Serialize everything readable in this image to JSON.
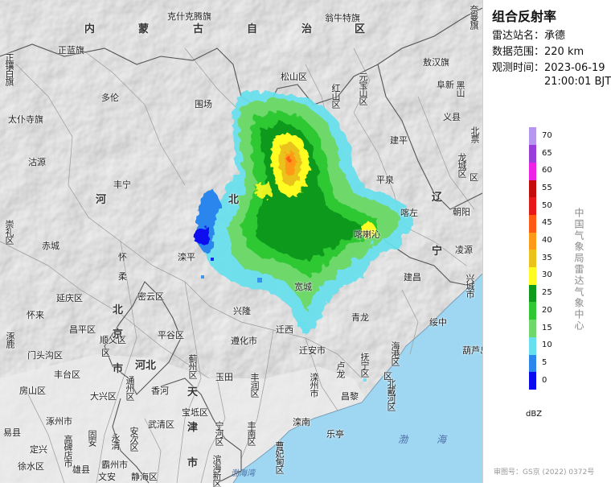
{
  "panel": {
    "title": "组合反射率",
    "station_label": "雷达站名：",
    "station_value": "承德",
    "range_label": "数据范围：",
    "range_value": "220 km",
    "time_label": "观测时间：",
    "time_date": "2023-06-19",
    "time_clock": "21:00:01 BJT",
    "unit": "dBZ",
    "org": "中国气象局雷达气象中心",
    "approval": "审图号：GS京 (2022) 0372号"
  },
  "legend": [
    {
      "value": "0",
      "color": "#0b0bf0"
    },
    {
      "value": "5",
      "color": "#2c86ec"
    },
    {
      "value": "10",
      "color": "#66e0ee"
    },
    {
      "value": "15",
      "color": "#6ed86a"
    },
    {
      "value": "20",
      "color": "#2fc833"
    },
    {
      "value": "25",
      "color": "#0e9a1a"
    },
    {
      "value": "30",
      "color": "#fffc22"
    },
    {
      "value": "35",
      "color": "#ebc21a"
    },
    {
      "value": "40",
      "color": "#ff9a18"
    },
    {
      "value": "45",
      "color": "#ff5a14"
    },
    {
      "value": "50",
      "color": "#e81818"
    },
    {
      "value": "55",
      "color": "#c40c0c"
    },
    {
      "value": "60",
      "color": "#ee22e6"
    },
    {
      "value": "65",
      "color": "#9a3eda"
    },
    {
      "value": "70",
      "color": "#b696ee"
    }
  ],
  "map_labels": {
    "l1": "内",
    "l2": "蒙",
    "l3": "古",
    "l4": "自",
    "l5": "治",
    "l6": "区",
    "l7": "克什克腾旗",
    "l8": "翁牛特旗",
    "l9": "奈曼旗",
    "l10": "正蓝旗",
    "l11": "敖汉旗",
    "l12": "正镶白旗",
    "l13": "多伦",
    "l14": "松山区",
    "l15": "元宝山区",
    "l16": "红山区",
    "l17": "太仆寺旗",
    "l18": "围场",
    "l19": "建平",
    "l20": "沽源",
    "l21": "丰宁",
    "l22": "北票",
    "l23": "龙城区",
    "l24": "朝阳",
    "l25": "凌源",
    "l26": "河",
    "l27": "北",
    "l28": "辽",
    "l29": "宁",
    "l30": "赤城",
    "l31": "崇礼区",
    "l32": "怀",
    "l33": "柔",
    "l34": "滦平",
    "l35": "兴隆",
    "l36": "宽城",
    "l37": "平泉",
    "l38": "喀左",
    "l39": "建昌",
    "l40": "喀喇沁",
    "l41": "延庆区",
    "l42": "密云区",
    "l43": "怀来",
    "l44": "昌平区",
    "l45": "顺义区",
    "l46": "平谷区",
    "l47": "北",
    "l48": "京",
    "l49": "遵化市",
    "l50": "迁西",
    "l51": "青龙",
    "l52": "绥中",
    "l53": "兴城市",
    "l54": "门头沟区",
    "l55": "涿鹿",
    "l56": "蓟州区",
    "l57": "迁安市",
    "l58": "卢龙",
    "l59": "抚宁区",
    "l60": "海港区",
    "l61": "丰台区",
    "l62": "大兴区",
    "l63": "通州区",
    "l64": "香河",
    "l65": "玉田",
    "l66": "丰润区",
    "l67": "滦州市",
    "l68": "昌黎",
    "l69": "北戴河区",
    "l70": "房山区",
    "l71": "涿州市",
    "l72": "永清",
    "l73": "武清区",
    "l74": "宝坻区",
    "l75": "天",
    "l76": "津",
    "l77": "市",
    "l78": "宁河区",
    "l79": "丰南区",
    "l80": "滦南",
    "l81": "乐亭",
    "l82": "曹妃甸区",
    "l83": "易县",
    "l84": "定兴",
    "l85": "高碑店市",
    "l86": "固安",
    "l87": "安次区",
    "l88": "霸州市",
    "l89": "雄县",
    "l90": "文安",
    "l91": "静海区",
    "l92": "渤海湾",
    "l93": "渤",
    "l94": "海",
    "l95": "徐水区",
    "l96": "滨海新区",
    "l97": "河北",
    "l98": "区",
    "l99": "市",
    "l100": "阜新",
    "l101": "黑山",
    "l102": "区",
    "l103": "义县",
    "l104": "葫芦岛",
    "l105": "区"
  }
}
